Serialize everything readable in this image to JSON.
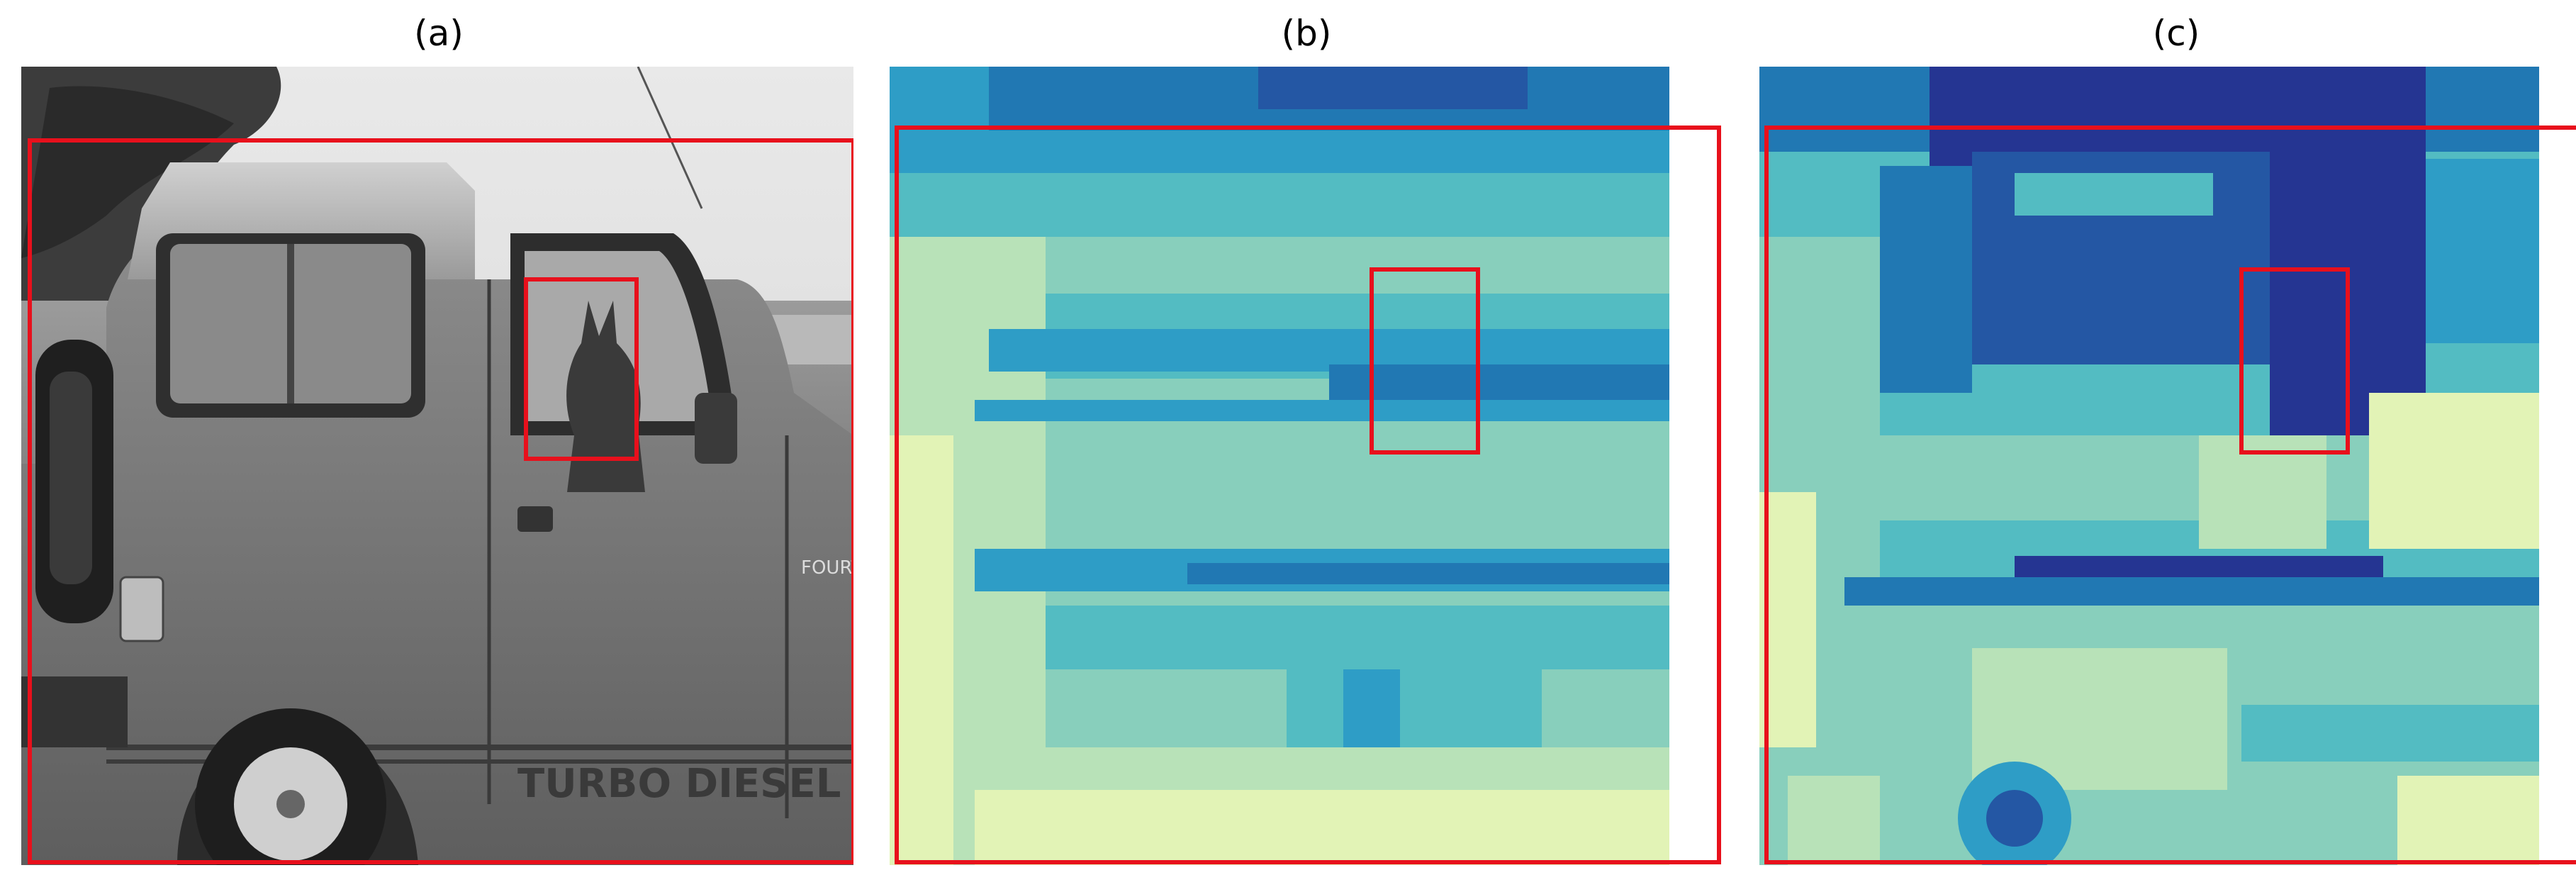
{
  "figure": {
    "panels": [
      {
        "id": "a",
        "label": "(a)",
        "kind": "grayscale-photo",
        "photo_text": [
          "FOURTI",
          "TURBO DIESEL"
        ]
      },
      {
        "id": "b",
        "label": "(b)",
        "kind": "heatmap"
      },
      {
        "id": "c",
        "label": "(c)",
        "kind": "heatmap"
      }
    ],
    "colors": {
      "box": "#e8101c",
      "heat_levels": [
        "#fbfdd3",
        "#e2f3b6",
        "#b8e2b8",
        "#88cfbc",
        "#53bcc2",
        "#2e9dc6",
        "#2178b3",
        "#2457a4",
        "#253592",
        "#1b1f6b"
      ]
    }
  }
}
